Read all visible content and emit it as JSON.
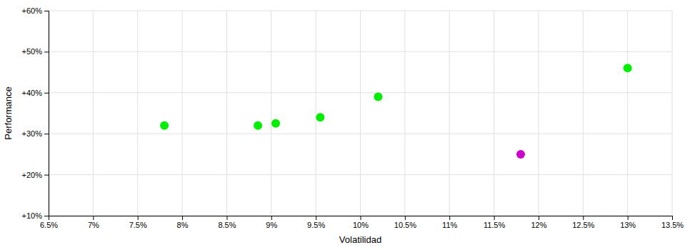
{
  "chart_data": {
    "type": "scatter",
    "x": [
      7.8,
      8.85,
      9.05,
      9.55,
      10.2,
      11.8,
      13.0
    ],
    "values": [
      32,
      32,
      32.5,
      34,
      39,
      25,
      46
    ],
    "colors": [
      "#00ee00",
      "#00ee00",
      "#00ee00",
      "#00ee00",
      "#00ee00",
      "#cc00cc",
      "#00ee00"
    ],
    "xlabel": "Volatilidad",
    "ylabel": "Performance",
    "xlim": [
      6.5,
      13.5
    ],
    "ylim": [
      10,
      60
    ],
    "xticks": [
      {
        "value": 6.5,
        "label": "6.5%"
      },
      {
        "value": 7.0,
        "label": "7%"
      },
      {
        "value": 7.5,
        "label": "7.5%"
      },
      {
        "value": 8.0,
        "label": "8%"
      },
      {
        "value": 8.5,
        "label": "8.5%"
      },
      {
        "value": 9.0,
        "label": "9%"
      },
      {
        "value": 9.5,
        "label": "9.5%"
      },
      {
        "value": 10.0,
        "label": "10%"
      },
      {
        "value": 10.5,
        "label": "10.5%"
      },
      {
        "value": 11.0,
        "label": "11%"
      },
      {
        "value": 11.5,
        "label": "11.5%"
      },
      {
        "value": 12.0,
        "label": "12%"
      },
      {
        "value": 12.5,
        "label": "12.5%"
      },
      {
        "value": 13.0,
        "label": "13%"
      },
      {
        "value": 13.5,
        "label": "13.5%"
      }
    ],
    "yticks": [
      {
        "value": 10,
        "label": "+10%"
      },
      {
        "value": 20,
        "label": "+20%"
      },
      {
        "value": 30,
        "label": "+30%"
      },
      {
        "value": 40,
        "label": "+40%"
      },
      {
        "value": 50,
        "label": "+50%"
      },
      {
        "value": 60,
        "label": "+60%"
      }
    ],
    "grid": true
  }
}
